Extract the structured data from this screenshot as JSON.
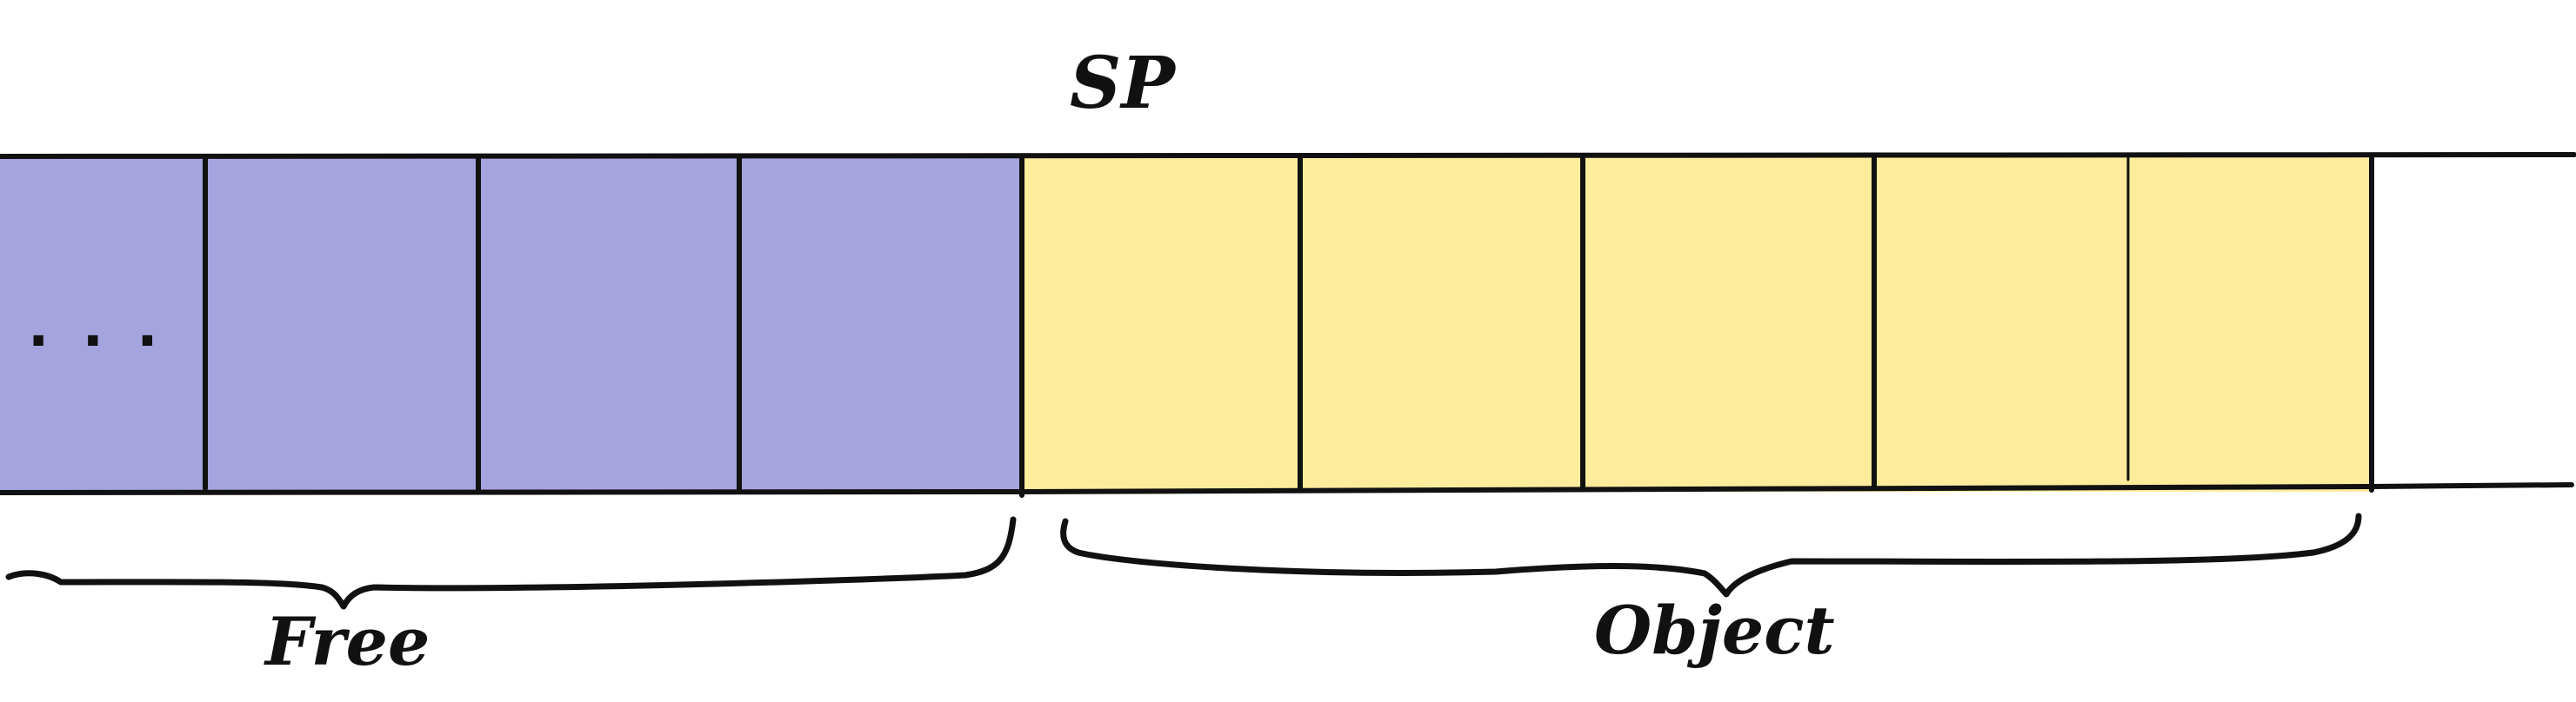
{
  "diagram": {
    "pointer_label": "SP",
    "ellipsis": ". . .",
    "regions": {
      "free": {
        "label": "Free",
        "color": "#a5a4de"
      },
      "object": {
        "label": "Object",
        "color": "#fdec9c"
      }
    },
    "cells": [
      {
        "region": "free",
        "text": ". . ."
      },
      {
        "region": "free"
      },
      {
        "region": "free"
      },
      {
        "region": "free"
      },
      {
        "region": "object"
      },
      {
        "region": "object"
      },
      {
        "region": "object"
      },
      {
        "region": "object"
      },
      {
        "region": "object"
      }
    ],
    "line_color": "#111111"
  }
}
